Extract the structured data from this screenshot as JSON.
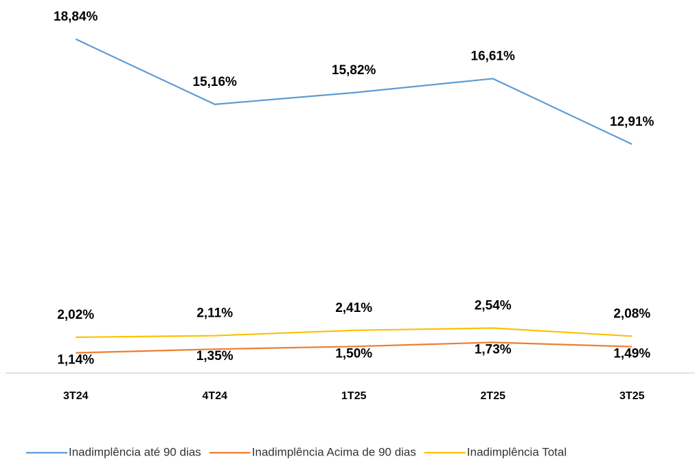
{
  "chart_data": {
    "type": "line",
    "categories": [
      "3T24",
      "4T24",
      "1T25",
      "2T25",
      "3T25"
    ],
    "series": [
      {
        "name": "Inadimplência até 90 dias",
        "color": "#5b9bd5",
        "values": [
          18.84,
          15.16,
          15.82,
          16.61,
          12.91
        ],
        "value_labels": [
          "18,84%",
          "15,16%",
          "15,82%",
          "16,61%",
          "12,91%"
        ],
        "label_position": "above"
      },
      {
        "name": "Inadimplência Acima de 90 dias",
        "color": "#ed7d31",
        "values": [
          1.14,
          1.35,
          1.5,
          1.73,
          1.49
        ],
        "value_labels": [
          "1,14%",
          "1,35%",
          "1,50%",
          "1,73%",
          "1,49%"
        ],
        "label_position": "below"
      },
      {
        "name": "Inadimplência Total",
        "color": "#ffc000",
        "values": [
          2.02,
          2.11,
          2.41,
          2.54,
          2.08
        ],
        "value_labels": [
          "2,02%",
          "2,11%",
          "2,41%",
          "2,54%",
          "2,08%"
        ],
        "label_position": "above"
      }
    ],
    "ylim": [
      0,
      20
    ],
    "legend": "bottom"
  }
}
